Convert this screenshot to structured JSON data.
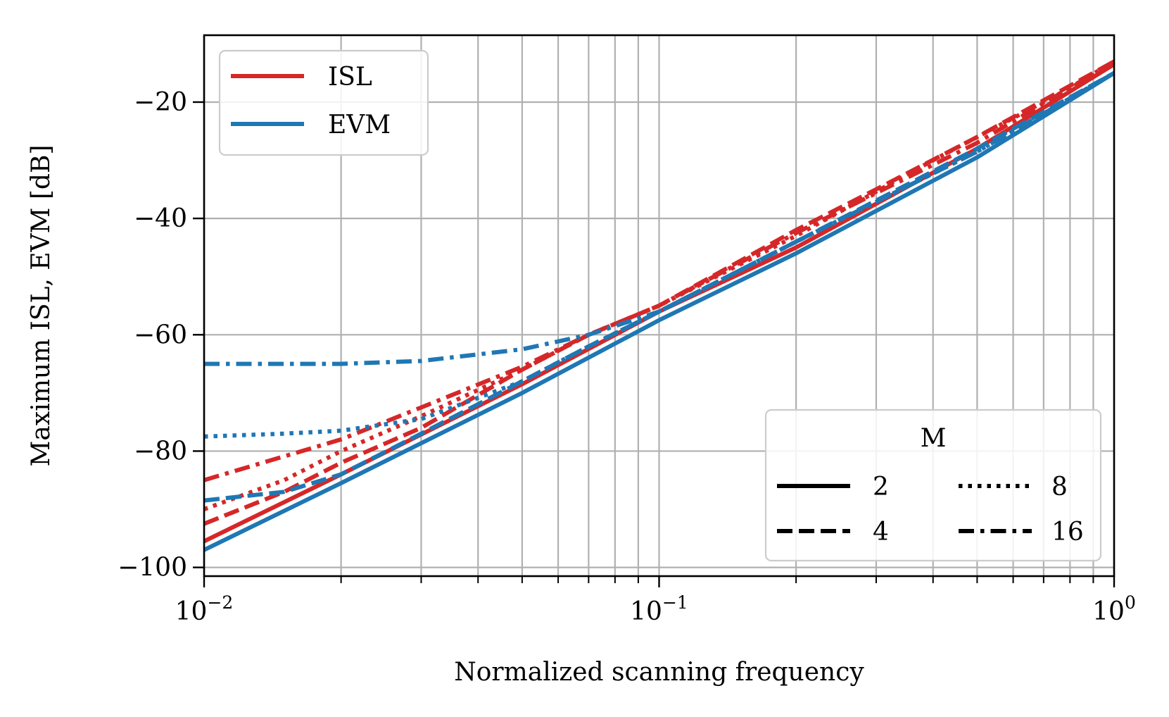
{
  "chart_data": {
    "type": "line",
    "title": "",
    "xlabel": "Normalized scanning frequency",
    "ylabel": "Maximum ISL, EVM [dB]",
    "xscale": "log",
    "xlim": [
      0.01,
      1
    ],
    "ylim": [
      -101.5,
      -8.5
    ],
    "grid": true,
    "x_ticks": [
      {
        "value": 0.01,
        "base": "10",
        "exp": "−2"
      },
      {
        "value": 0.1,
        "base": "10",
        "exp": "−1"
      },
      {
        "value": 1,
        "base": "10",
        "exp": "0"
      }
    ],
    "y_ticks": [
      {
        "value": -20,
        "label": "−20"
      },
      {
        "value": -40,
        "label": "−40"
      },
      {
        "value": -60,
        "label": "−60"
      },
      {
        "value": -80,
        "label": "−80"
      },
      {
        "value": -100,
        "label": "−100"
      }
    ],
    "metric_legend": {
      "placement": "top-left",
      "entries": [
        {
          "label": "ISL",
          "color": "#d62728"
        },
        {
          "label": "EVM",
          "color": "#1f77b4"
        }
      ]
    },
    "m_legend": {
      "placement": "bottom-right",
      "title": "M",
      "entries": [
        {
          "label": "2",
          "style": "solid"
        },
        {
          "label": "8",
          "style": "dotted"
        },
        {
          "label": "4",
          "style": "dashed"
        },
        {
          "label": "16",
          "style": "dashdot"
        }
      ]
    },
    "series": [
      {
        "name": "ISL M=2",
        "metric": "ISL",
        "M": 2,
        "style": "solid",
        "color": "#d62728",
        "x": [
          0.01,
          0.02,
          0.05,
          0.1,
          0.2,
          0.5,
          1.0
        ],
        "y": [
          -95.5,
          -84,
          -68.5,
          -56,
          -45,
          -28,
          -13.5
        ]
      },
      {
        "name": "ISL M=4",
        "metric": "ISL",
        "M": 4,
        "style": "dashed",
        "color": "#d62728",
        "x": [
          0.01,
          0.015,
          0.02,
          0.03,
          0.05,
          0.07,
          0.1,
          0.2,
          0.3,
          0.5,
          1.0
        ],
        "y": [
          -92.5,
          -87,
          -82,
          -76,
          -66,
          -60,
          -55,
          -42,
          -35,
          -26,
          -13
        ]
      },
      {
        "name": "ISL M=8",
        "metric": "ISL",
        "M": 8,
        "style": "dotted",
        "color": "#d62728",
        "x": [
          0.01,
          0.015,
          0.02,
          0.03,
          0.05,
          0.07,
          0.1,
          0.2,
          0.4,
          0.7,
          1.0
        ],
        "y": [
          -90,
          -85,
          -80,
          -74,
          -66,
          -60,
          -55,
          -43,
          -30,
          -20,
          -13.5
        ]
      },
      {
        "name": "ISL M=16",
        "metric": "ISL",
        "M": 16,
        "style": "dashdot",
        "color": "#d62728",
        "x": [
          0.01,
          0.02,
          0.03,
          0.05,
          0.07,
          0.1,
          0.2,
          0.5,
          1.0
        ],
        "y": [
          -85,
          -78,
          -72.5,
          -65.5,
          -60,
          -55,
          -42.5,
          -27,
          -13
        ]
      },
      {
        "name": "EVM M=2",
        "metric": "EVM",
        "M": 2,
        "style": "solid",
        "color": "#1f77b4",
        "x": [
          0.01,
          0.02,
          0.05,
          0.1,
          0.2,
          0.5,
          1.0
        ],
        "y": [
          -97,
          -85.5,
          -70,
          -57.5,
          -46,
          -29.5,
          -15
        ]
      },
      {
        "name": "EVM M=4",
        "metric": "EVM",
        "M": 4,
        "style": "dashed",
        "color": "#1f77b4",
        "x": [
          0.01,
          0.015,
          0.02,
          0.03,
          0.05,
          0.07,
          0.1,
          0.2,
          0.5,
          1.0
        ],
        "y": [
          -88.5,
          -87,
          -84,
          -77,
          -68,
          -62,
          -56,
          -44,
          -28,
          -15
        ]
      },
      {
        "name": "EVM M=8",
        "metric": "EVM",
        "M": 8,
        "style": "dotted",
        "color": "#1f77b4",
        "x": [
          0.01,
          0.015,
          0.02,
          0.03,
          0.05,
          0.07,
          0.1,
          0.2,
          0.5,
          1.0
        ],
        "y": [
          -77.5,
          -77,
          -76.5,
          -74.5,
          -68,
          -62,
          -56,
          -44,
          -28.5,
          -15
        ]
      },
      {
        "name": "EVM M=16",
        "metric": "EVM",
        "M": 16,
        "style": "dashdot",
        "color": "#1f77b4",
        "x": [
          0.01,
          0.02,
          0.03,
          0.05,
          0.07,
          0.1,
          0.2,
          0.5,
          1.0
        ],
        "y": [
          -65,
          -65,
          -64.5,
          -62.5,
          -60,
          -56,
          -44,
          -28.5,
          -15
        ]
      }
    ]
  }
}
